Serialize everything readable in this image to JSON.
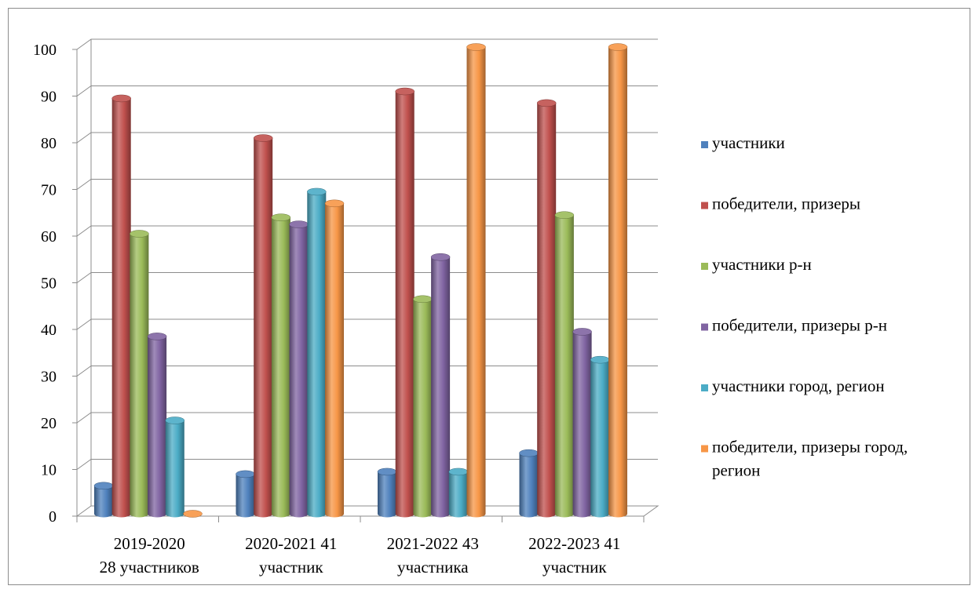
{
  "chart_data": {
    "type": "bar",
    "title": "",
    "xlabel": "",
    "ylabel": "",
    "ylim": [
      0,
      100
    ],
    "yticks": [
      0,
      10,
      20,
      30,
      40,
      50,
      60,
      70,
      80,
      90,
      100
    ],
    "grid": true,
    "legend_position": "right",
    "categories": [
      [
        "2019-2020",
        "28 участников"
      ],
      [
        "2020-2021  41",
        "участник"
      ],
      [
        "2021-2022 43",
        "участника"
      ],
      [
        "2022-2023 41",
        "участник"
      ]
    ],
    "series": [
      {
        "name": "участники",
        "color": "#4f81bd",
        "values": [
          6,
          8.5,
          9,
          13
        ]
      },
      {
        "name": "победители, призеры",
        "color": "#c0504d",
        "values": [
          89,
          80.5,
          90.5,
          88
        ]
      },
      {
        "name": "участники р-н",
        "color": "#9bbb59",
        "values": [
          60,
          63.5,
          46,
          64
        ]
      },
      {
        "name": "победители, призеры р-н",
        "color": "#8064a2",
        "values": [
          38,
          62,
          55,
          39
        ]
      },
      {
        "name": "участники город, регион",
        "color": "#4bacc6",
        "values": [
          20,
          69,
          9,
          33
        ]
      },
      {
        "name": [
          "победители, призеры город,",
          "регион"
        ],
        "color": "#f79646",
        "values": [
          0,
          66.5,
          100,
          100
        ]
      }
    ]
  }
}
